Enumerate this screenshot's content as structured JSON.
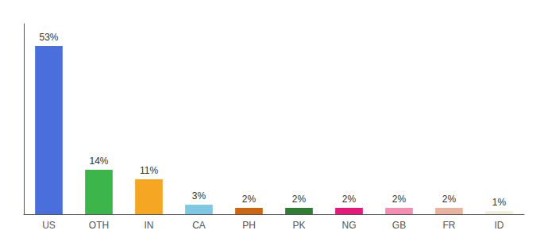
{
  "chart_data": {
    "type": "bar",
    "categories": [
      "US",
      "OTH",
      "IN",
      "CA",
      "PH",
      "PK",
      "NG",
      "GB",
      "FR",
      "ID"
    ],
    "values": [
      53,
      14,
      11,
      3,
      2,
      2,
      2,
      2,
      2,
      1
    ],
    "value_labels": [
      "53%",
      "14%",
      "11%",
      "3%",
      "2%",
      "2%",
      "2%",
      "2%",
      "2%",
      "1%"
    ],
    "data_labels": true,
    "colors": [
      "#4a6fdc",
      "#3cb54a",
      "#f5a623",
      "#7ec8e3",
      "#cc6611",
      "#2e7d32",
      "#e8177a",
      "#f48fb1",
      "#e8b4a0",
      "#f5f0dc"
    ],
    "ylim": [
      0,
      60
    ],
    "tick_labels": "x",
    "grid": false
  }
}
